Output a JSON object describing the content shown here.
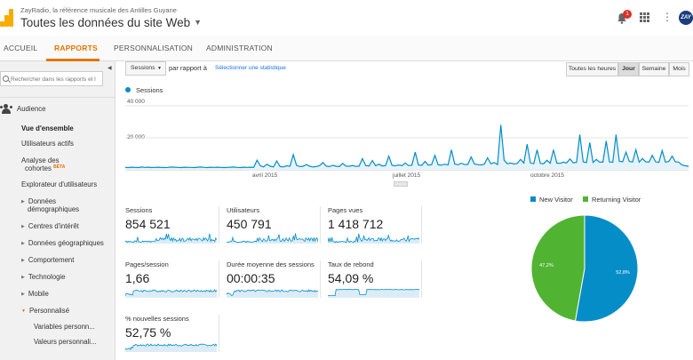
{
  "header": {
    "account": "ZayRadio, la référence musicale des Antilles Guyane",
    "property": "Toutes les données du site Web",
    "notification_count": "1",
    "brand_mark": "ZAY"
  },
  "nav": {
    "tabs": [
      {
        "label": "ACCUEIL"
      },
      {
        "label": "RAPPORTS"
      },
      {
        "label": "PERSONNALISATION"
      },
      {
        "label": "ADMINISTRATION"
      }
    ],
    "active": "RAPPORTS"
  },
  "sidebar": {
    "search_placeholder": "Rechercher dans les rapports et l",
    "section": "Audience",
    "items": {
      "overview": "Vue d'ensemble",
      "active_users": "Utilisateurs actifs",
      "cohort_1": "Analyse des",
      "cohort_2": "cohortes",
      "beta": "BÊTA",
      "explorer": "Explorateur d'utilisateurs",
      "demo_1": "Données",
      "demo_2": "démographiques",
      "interests": "Centres d'intérêt",
      "geo": "Données géographiques",
      "behavior": "Comportement",
      "technology": "Technologie",
      "mobile": "Mobile",
      "custom": "Personnalisé",
      "custom_vars": "Variables personn...",
      "custom_vals": "Valeurs personnali..."
    }
  },
  "toolbar": {
    "metric_select": "Sessions",
    "compare_text": "par rapport à",
    "select_metric_link": "Sélectionner une statistique",
    "ranges": [
      "Toutes les heures",
      "Jour",
      "Semaine",
      "Mois"
    ],
    "active_range": "Jour"
  },
  "chart_data": {
    "type": "area",
    "legend": "Sessions",
    "y_ticks": [
      "40 000",
      "20 000"
    ],
    "ylim": [
      0,
      40000
    ],
    "x_labels": [
      "avril 2015",
      "juillet 2015",
      "octobre 2015"
    ],
    "series": [
      {
        "name": "Sessions",
        "color": "#058dc7",
        "values": [
          1500,
          1400,
          1600,
          1500,
          1400,
          1700,
          1500,
          1600,
          1400,
          1500,
          1600,
          1500,
          1400,
          1500,
          1700,
          1600,
          1500,
          1400,
          1600,
          1500,
          1500,
          1400,
          1600,
          1700,
          1500,
          1400,
          1600,
          1500,
          1600,
          1500,
          1400,
          1500,
          1600,
          1700,
          1500,
          1400,
          1600,
          1500,
          1600,
          1500,
          6000,
          2500,
          1800,
          3500,
          2200,
          1800,
          5500,
          2000,
          1800,
          2500,
          2200,
          9500,
          2800,
          2000,
          2200,
          3200,
          2200,
          1800,
          2000,
          2600,
          4500,
          2300,
          2000,
          2800,
          2200,
          2000,
          4000,
          2300,
          2200,
          2600,
          2100,
          2300,
          7000,
          2600,
          2400,
          5800,
          2500,
          3500,
          2400,
          2600,
          8500,
          2700,
          2500,
          3000,
          2600,
          4200,
          2600,
          2900,
          11000,
          3000,
          2700,
          5200,
          2900,
          3200,
          9000,
          3100,
          2900,
          3500,
          3000,
          12500,
          3600,
          3100,
          4100,
          3200,
          3400,
          8000,
          3600,
          3200,
          3000,
          3500,
          7500,
          3700,
          4500,
          3300,
          28000,
          6000,
          3800,
          4200,
          3600,
          4000,
          6500,
          4200,
          16000,
          4300,
          3800,
          12500,
          4000,
          3800,
          6000,
          4100,
          12500,
          4200,
          4000,
          4800,
          4300,
          6800,
          4400,
          4600,
          22000,
          5000,
          4500,
          17000,
          4600,
          6500,
          4800,
          4800,
          18000,
          4900,
          4700,
          22000,
          5200,
          5000,
          11000,
          5200,
          4900,
          12500,
          4800,
          7000,
          5000,
          4800,
          9000,
          5000,
          4600,
          12000,
          4800,
          5200,
          8500,
          5000,
          4800,
          3000,
          2500,
          2200
        ]
      }
    ]
  },
  "metrics": [
    {
      "label": "Sessions",
      "value": "854 521"
    },
    {
      "label": "Utilisateurs",
      "value": "450 791"
    },
    {
      "label": "Pages vues",
      "value": "1 418 712"
    },
    {
      "label": "Pages/session",
      "value": "1,66"
    },
    {
      "label": "Durée moyenne des sessions",
      "value": "00:00:35"
    },
    {
      "label": "Taux de rebond",
      "value": "54,09 %"
    },
    {
      "label": "% nouvelles sessions",
      "value": "52,75 %"
    }
  ],
  "pie": {
    "type": "pie",
    "slices": [
      {
        "name": "New Visitor",
        "value": 52.8,
        "label": "52,8%",
        "color": "#058dc7"
      },
      {
        "name": "Returning Visitor",
        "value": 47.2,
        "label": "47,2%",
        "color": "#50b432"
      }
    ]
  }
}
